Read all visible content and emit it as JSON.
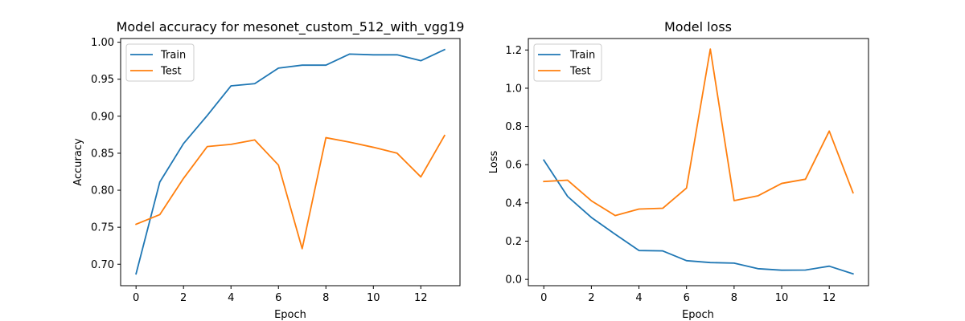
{
  "figure": {
    "background": "#ffffff"
  },
  "colors": {
    "train": "#1f77b4",
    "test": "#ff7f0e"
  },
  "chart_data": [
    {
      "type": "line",
      "title": "Model accuracy for mesonet_custom_512_with_vgg19",
      "xlabel": "Epoch",
      "ylabel": "Accuracy",
      "xlim": [
        -0.65,
        13.65
      ],
      "ylim": [
        0.671,
        1.005
      ],
      "xticks": [
        0,
        2,
        4,
        6,
        8,
        10,
        12
      ],
      "xtick_labels": [
        "0",
        "2",
        "4",
        "6",
        "8",
        "10",
        "12"
      ],
      "yticks": [
        0.7,
        0.75,
        0.8,
        0.85,
        0.9,
        0.95,
        1.0
      ],
      "ytick_labels": [
        "0.70",
        "0.75",
        "0.80",
        "0.85",
        "0.90",
        "0.95",
        "1.00"
      ],
      "legend": "upper left",
      "grid": false,
      "x": [
        0,
        1,
        2,
        3,
        4,
        5,
        6,
        7,
        8,
        9,
        10,
        11,
        12,
        13
      ],
      "series": [
        {
          "name": "Train",
          "values": [
            0.687,
            0.811,
            0.863,
            0.901,
            0.941,
            0.944,
            0.965,
            0.969,
            0.969,
            0.984,
            0.983,
            0.983,
            0.975,
            0.99
          ]
        },
        {
          "name": "Test",
          "values": [
            0.754,
            0.767,
            0.816,
            0.859,
            0.862,
            0.868,
            0.834,
            0.721,
            0.871,
            0.865,
            0.858,
            0.85,
            0.818,
            0.874
          ]
        }
      ]
    },
    {
      "type": "line",
      "title": "Model loss",
      "xlabel": "Epoch",
      "ylabel": "Loss",
      "xlim": [
        -0.65,
        13.65
      ],
      "ylim": [
        -0.033,
        1.26
      ],
      "xticks": [
        0,
        2,
        4,
        6,
        8,
        10,
        12
      ],
      "xtick_labels": [
        "0",
        "2",
        "4",
        "6",
        "8",
        "10",
        "12"
      ],
      "yticks": [
        0.0,
        0.2,
        0.4,
        0.6,
        0.8,
        1.0,
        1.2
      ],
      "ytick_labels": [
        "0.0",
        "0.2",
        "0.4",
        "0.6",
        "0.8",
        "1.0",
        "1.2"
      ],
      "legend": "upper left",
      "grid": false,
      "x": [
        0,
        1,
        2,
        3,
        4,
        5,
        6,
        7,
        8,
        9,
        10,
        11,
        12,
        13
      ],
      "series": [
        {
          "name": "Train",
          "values": [
            0.624,
            0.434,
            0.324,
            0.236,
            0.151,
            0.149,
            0.098,
            0.088,
            0.085,
            0.056,
            0.048,
            0.049,
            0.069,
            0.029
          ]
        },
        {
          "name": "Test",
          "values": [
            0.512,
            0.519,
            0.411,
            0.334,
            0.368,
            0.372,
            0.478,
            1.205,
            0.412,
            0.437,
            0.502,
            0.524,
            0.776,
            0.453
          ]
        }
      ]
    }
  ]
}
